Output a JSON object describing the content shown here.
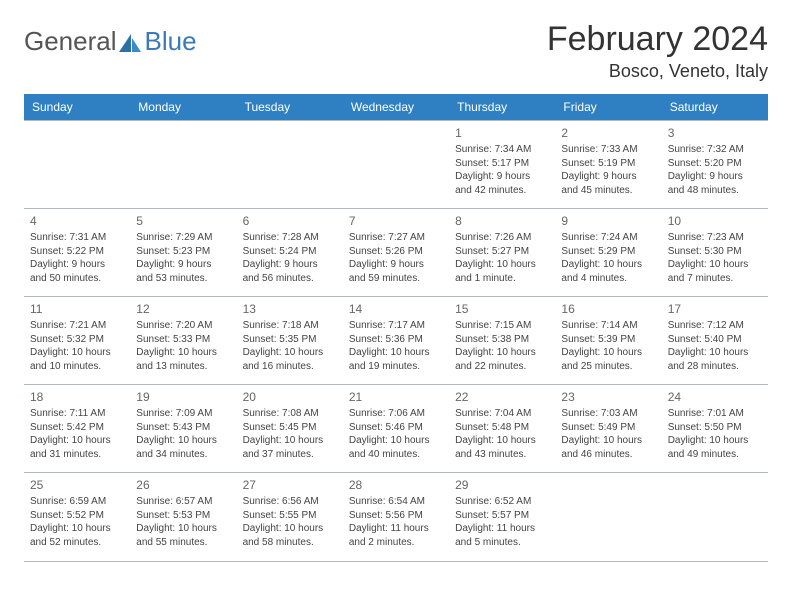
{
  "logo": {
    "general": "General",
    "blue": "Blue"
  },
  "title": "February 2024",
  "location": "Bosco, Veneto, Italy",
  "colors": {
    "header_bg": "#2f80c3",
    "header_text": "#ffffff",
    "rule": "#b0b8bf",
    "logo_blue": "#3a7ab8",
    "logo_gray": "#555555",
    "text": "#444444"
  },
  "day_headers": [
    "Sunday",
    "Monday",
    "Tuesday",
    "Wednesday",
    "Thursday",
    "Friday",
    "Saturday"
  ],
  "weeks": [
    [
      null,
      null,
      null,
      null,
      {
        "n": "1",
        "sr": "7:34 AM",
        "ss": "5:17 PM",
        "dl": "9 hours and 42 minutes."
      },
      {
        "n": "2",
        "sr": "7:33 AM",
        "ss": "5:19 PM",
        "dl": "9 hours and 45 minutes."
      },
      {
        "n": "3",
        "sr": "7:32 AM",
        "ss": "5:20 PM",
        "dl": "9 hours and 48 minutes."
      }
    ],
    [
      {
        "n": "4",
        "sr": "7:31 AM",
        "ss": "5:22 PM",
        "dl": "9 hours and 50 minutes."
      },
      {
        "n": "5",
        "sr": "7:29 AM",
        "ss": "5:23 PM",
        "dl": "9 hours and 53 minutes."
      },
      {
        "n": "6",
        "sr": "7:28 AM",
        "ss": "5:24 PM",
        "dl": "9 hours and 56 minutes."
      },
      {
        "n": "7",
        "sr": "7:27 AM",
        "ss": "5:26 PM",
        "dl": "9 hours and 59 minutes."
      },
      {
        "n": "8",
        "sr": "7:26 AM",
        "ss": "5:27 PM",
        "dl": "10 hours and 1 minute."
      },
      {
        "n": "9",
        "sr": "7:24 AM",
        "ss": "5:29 PM",
        "dl": "10 hours and 4 minutes."
      },
      {
        "n": "10",
        "sr": "7:23 AM",
        "ss": "5:30 PM",
        "dl": "10 hours and 7 minutes."
      }
    ],
    [
      {
        "n": "11",
        "sr": "7:21 AM",
        "ss": "5:32 PM",
        "dl": "10 hours and 10 minutes."
      },
      {
        "n": "12",
        "sr": "7:20 AM",
        "ss": "5:33 PM",
        "dl": "10 hours and 13 minutes."
      },
      {
        "n": "13",
        "sr": "7:18 AM",
        "ss": "5:35 PM",
        "dl": "10 hours and 16 minutes."
      },
      {
        "n": "14",
        "sr": "7:17 AM",
        "ss": "5:36 PM",
        "dl": "10 hours and 19 minutes."
      },
      {
        "n": "15",
        "sr": "7:15 AM",
        "ss": "5:38 PM",
        "dl": "10 hours and 22 minutes."
      },
      {
        "n": "16",
        "sr": "7:14 AM",
        "ss": "5:39 PM",
        "dl": "10 hours and 25 minutes."
      },
      {
        "n": "17",
        "sr": "7:12 AM",
        "ss": "5:40 PM",
        "dl": "10 hours and 28 minutes."
      }
    ],
    [
      {
        "n": "18",
        "sr": "7:11 AM",
        "ss": "5:42 PM",
        "dl": "10 hours and 31 minutes."
      },
      {
        "n": "19",
        "sr": "7:09 AM",
        "ss": "5:43 PM",
        "dl": "10 hours and 34 minutes."
      },
      {
        "n": "20",
        "sr": "7:08 AM",
        "ss": "5:45 PM",
        "dl": "10 hours and 37 minutes."
      },
      {
        "n": "21",
        "sr": "7:06 AM",
        "ss": "5:46 PM",
        "dl": "10 hours and 40 minutes."
      },
      {
        "n": "22",
        "sr": "7:04 AM",
        "ss": "5:48 PM",
        "dl": "10 hours and 43 minutes."
      },
      {
        "n": "23",
        "sr": "7:03 AM",
        "ss": "5:49 PM",
        "dl": "10 hours and 46 minutes."
      },
      {
        "n": "24",
        "sr": "7:01 AM",
        "ss": "5:50 PM",
        "dl": "10 hours and 49 minutes."
      }
    ],
    [
      {
        "n": "25",
        "sr": "6:59 AM",
        "ss": "5:52 PM",
        "dl": "10 hours and 52 minutes."
      },
      {
        "n": "26",
        "sr": "6:57 AM",
        "ss": "5:53 PM",
        "dl": "10 hours and 55 minutes."
      },
      {
        "n": "27",
        "sr": "6:56 AM",
        "ss": "5:55 PM",
        "dl": "10 hours and 58 minutes."
      },
      {
        "n": "28",
        "sr": "6:54 AM",
        "ss": "5:56 PM",
        "dl": "11 hours and 2 minutes."
      },
      {
        "n": "29",
        "sr": "6:52 AM",
        "ss": "5:57 PM",
        "dl": "11 hours and 5 minutes."
      },
      null,
      null
    ]
  ],
  "labels": {
    "sunrise": "Sunrise:",
    "sunset": "Sunset:",
    "daylight": "Daylight:"
  }
}
